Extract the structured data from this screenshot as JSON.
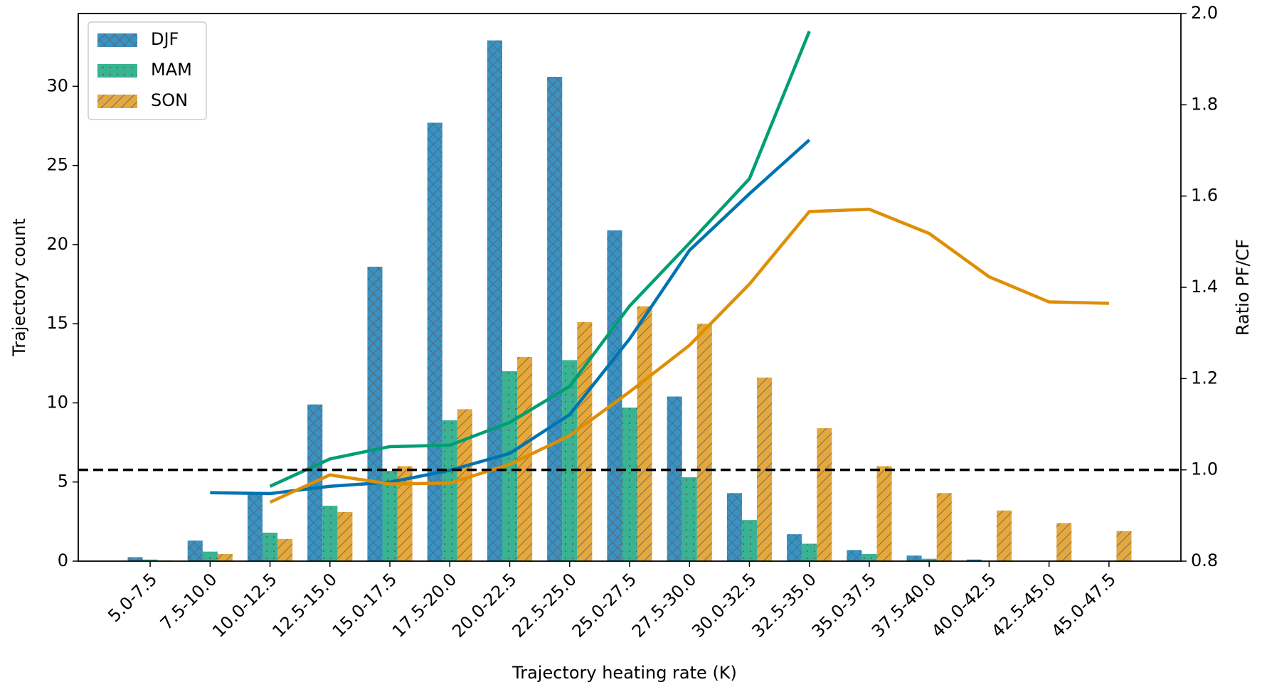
{
  "chart_data": {
    "type": "bar",
    "x_label": "Trajectory heating rate (K)",
    "y_label": "Trajectory count",
    "y2_label": "Ratio PF/CF",
    "categories": [
      "5.0-7.5",
      "7.5-10.0",
      "10.0-12.5",
      "12.5-15.0",
      "15.0-17.5",
      "17.5-20.0",
      "20.0-22.5",
      "22.5-25.0",
      "25.0-27.5",
      "27.5-30.0",
      "30.0-32.5",
      "32.5-35.0",
      "35.0-37.5",
      "37.5-40.0",
      "40.0-42.5",
      "42.5-45.0",
      "45.0-47.5"
    ],
    "series": [
      {
        "name": "DJF",
        "color": "#0173b2",
        "hatch": "x",
        "values": [
          0.25,
          1.3,
          4.3,
          9.9,
          18.6,
          27.7,
          32.9,
          30.6,
          20.9,
          10.4,
          4.3,
          1.7,
          0.7,
          0.35,
          0.1,
          0,
          0
        ],
        "ratio": [
          null,
          0.95,
          0.948,
          0.964,
          0.973,
          0.999,
          1.036,
          1.121,
          1.287,
          1.481,
          1.605,
          1.723,
          null,
          null,
          null,
          null,
          null
        ]
      },
      {
        "name": "MAM",
        "color": "#029e73",
        "hatch": ".",
        "values": [
          0.1,
          0.6,
          1.8,
          3.5,
          5.7,
          8.9,
          12.0,
          12.7,
          9.7,
          5.3,
          2.6,
          1.1,
          0.45,
          0.15,
          0,
          0,
          0
        ],
        "ratio": [
          null,
          null,
          0.964,
          1.024,
          1.051,
          1.054,
          1.104,
          1.183,
          1.359,
          1.497,
          1.638,
          1.961,
          null,
          null,
          null,
          null,
          null
        ]
      },
      {
        "name": "SON",
        "color": "#de8f05",
        "hatch": "/",
        "values": [
          0.05,
          0.45,
          1.4,
          3.1,
          6.0,
          9.6,
          12.9,
          15.1,
          16.1,
          15.0,
          11.6,
          8.4,
          6.0,
          4.3,
          3.2,
          2.4,
          1.9
        ],
        "ratio": [
          null,
          null,
          0.929,
          0.989,
          0.969,
          0.971,
          1.012,
          1.075,
          1.171,
          1.273,
          1.407,
          1.566,
          1.571,
          1.518,
          1.423,
          1.368,
          1.365
        ]
      }
    ],
    "reference_line": 1.0,
    "ylim": [
      0,
      34.6
    ],
    "yticks": [
      0,
      5,
      10,
      15,
      20,
      25,
      30
    ],
    "y2lim": [
      0.8,
      2.0
    ],
    "y2ticks": [
      0.8,
      {
        "value": 1.0,
        "label": "1.0"
      },
      1.2,
      1.4,
      1.6,
      1.8,
      {
        "value": 2.0,
        "label": "2.0"
      }
    ],
    "legend": "upper left"
  }
}
